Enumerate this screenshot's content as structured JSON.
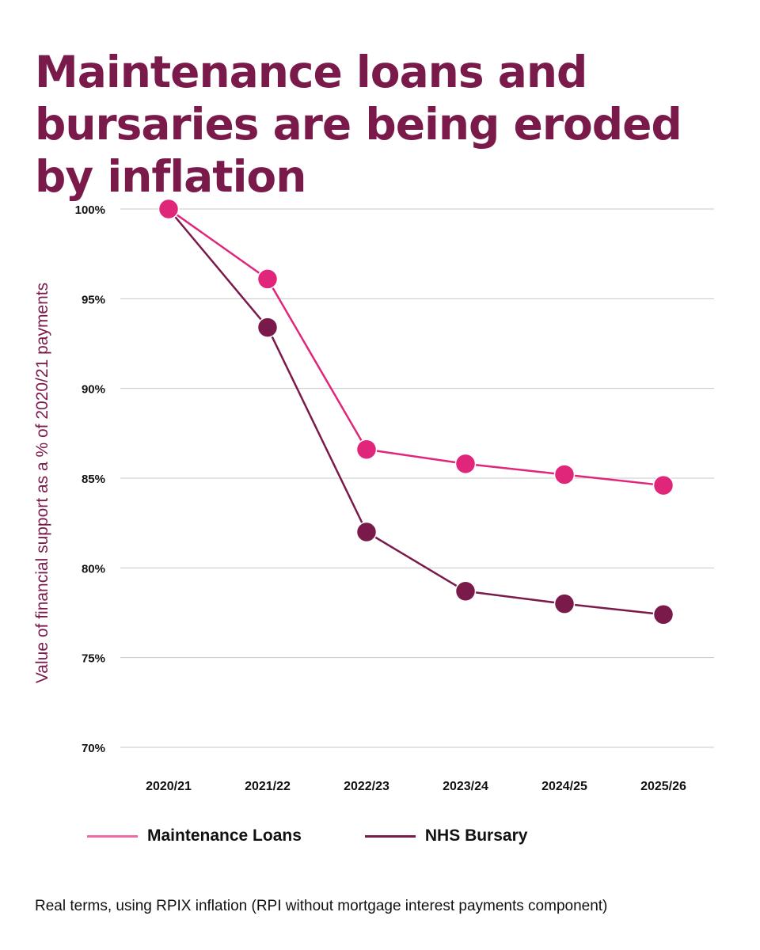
{
  "title": "Maintenance loans and bursaries are being eroded by inflation",
  "footnote": "Real terms, using RPIX inflation (RPI without mortgage interest payments component)",
  "chart_data": {
    "type": "line",
    "title": "Maintenance loans and bursaries are being eroded by inflation",
    "ylabel": "Value of financial support as a % of 2020/21 payments",
    "xlabel": "",
    "categories": [
      "2020/21",
      "2021/22",
      "2022/23",
      "2023/24",
      "2024/25",
      "2025/26"
    ],
    "ylim": [
      70,
      100
    ],
    "yticks": [
      100,
      95,
      90,
      85,
      80,
      75,
      70
    ],
    "ytick_labels": [
      "100%",
      "95%",
      "90%",
      "85%",
      "80%",
      "75%",
      "70%"
    ],
    "grid": true,
    "legend_position": "bottom",
    "series": [
      {
        "name": "Maintenance Loans",
        "color": "#e0267a",
        "values": [
          100,
          96.1,
          86.6,
          85.8,
          85.2,
          84.6
        ]
      },
      {
        "name": "NHS Bursary",
        "color": "#7a1a4b",
        "values": [
          100,
          93.4,
          82.0,
          78.7,
          78.0,
          77.4
        ]
      }
    ]
  }
}
